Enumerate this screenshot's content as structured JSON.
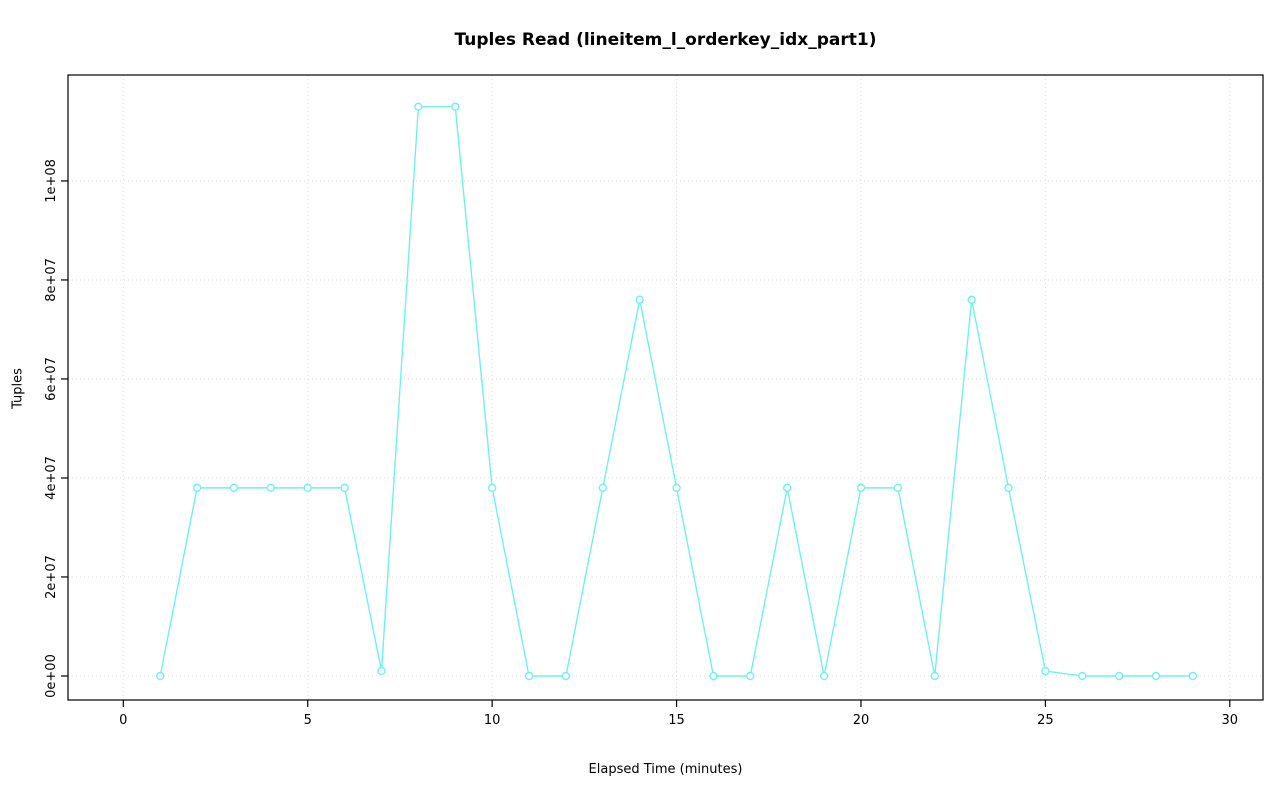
{
  "chart_data": {
    "type": "line",
    "title": "Tuples Read (lineitem_l_orderkey_idx_part1)",
    "xlabel": "Elapsed Time (minutes)",
    "ylabel": "Tuples",
    "x": [
      1,
      2,
      3,
      4,
      5,
      6,
      7,
      8,
      9,
      10,
      11,
      12,
      13,
      14,
      15,
      16,
      17,
      18,
      19,
      20,
      21,
      22,
      23,
      24,
      25,
      26,
      27,
      28,
      29
    ],
    "y": [
      0,
      38000000,
      38000000,
      38000000,
      38000000,
      38000000,
      1000000,
      115000000,
      115000000,
      38000000,
      0,
      0,
      38000000,
      76000000,
      38000000,
      0,
      0,
      38000000,
      0,
      38000000,
      38000000,
      0,
      76000000,
      38000000,
      1000000,
      0,
      0,
      0,
      0
    ],
    "xlim": [
      -1.5,
      30.9
    ],
    "ylim": [
      -4850000,
      121400000
    ],
    "x_ticks": {
      "values": [
        0,
        5,
        10,
        15,
        20,
        25,
        30
      ],
      "labels": [
        "0",
        "5",
        "10",
        "15",
        "20",
        "25",
        "30"
      ]
    },
    "y_ticks": {
      "values": [
        0,
        20000000,
        40000000,
        60000000,
        80000000,
        100000000
      ],
      "labels": [
        "0e+00",
        "2e+07",
        "4e+07",
        "6e+07",
        "8e+07",
        "1e+08"
      ]
    },
    "grid": true,
    "legend": "none",
    "line_color": "#72EFEF",
    "grid_color": "#DCDCDC",
    "box_color": "#000000",
    "point_style": "open-circle"
  }
}
